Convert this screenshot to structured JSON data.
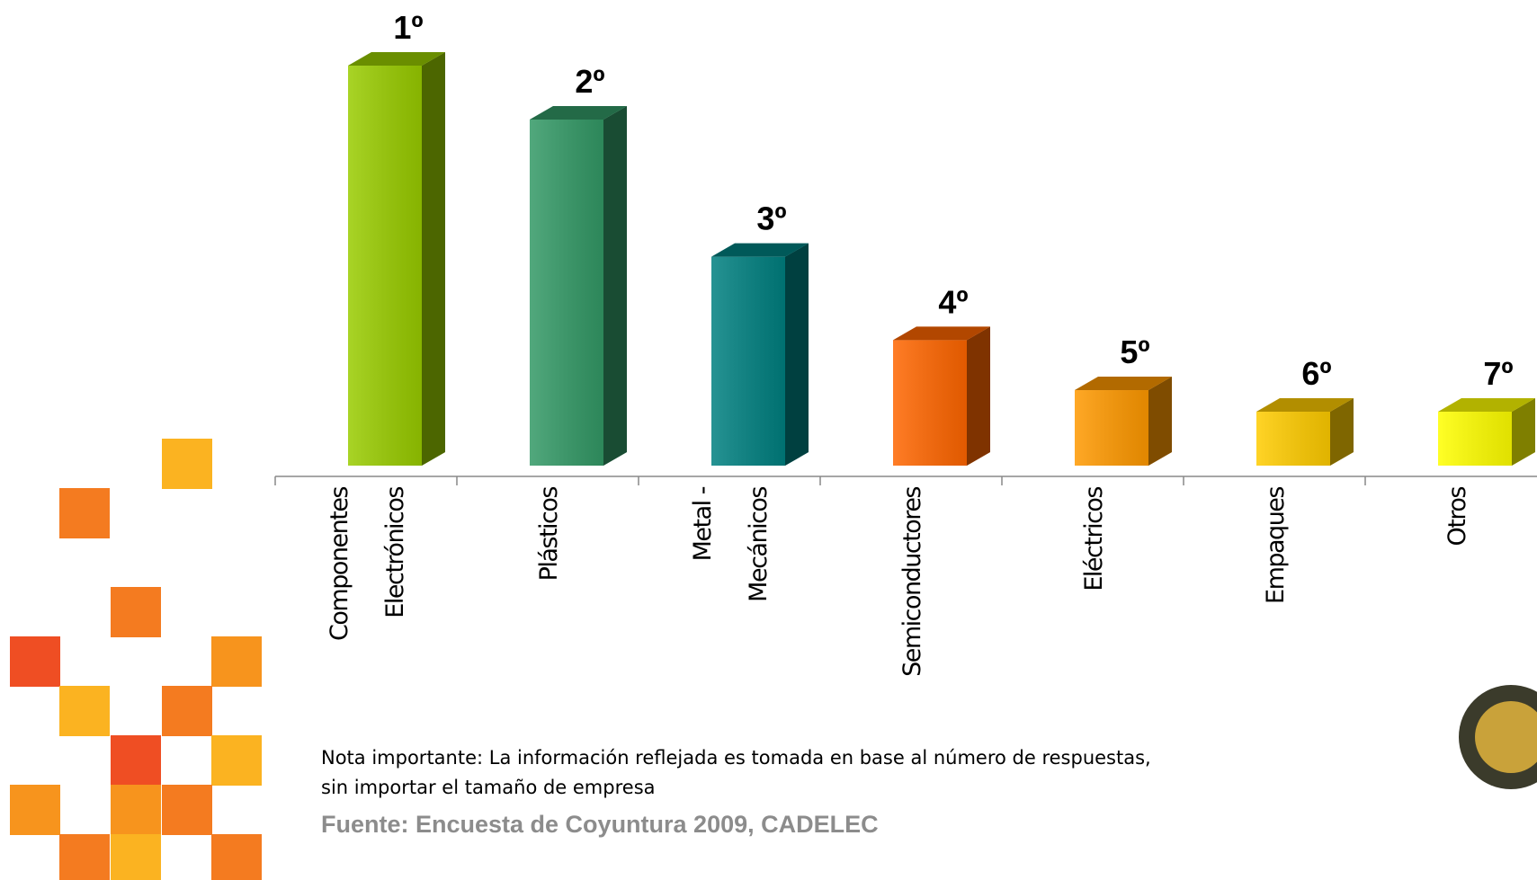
{
  "chart_data": {
    "type": "bar3d",
    "categories": [
      [
        "Componentes",
        "Electrónicos"
      ],
      [
        "Plásticos"
      ],
      [
        "Metal -",
        "Mecánicos"
      ],
      [
        "Semiconductores"
      ],
      [
        "Eléctricos"
      ],
      [
        "Empaques"
      ],
      [
        "Otros"
      ]
    ],
    "values": [
      408,
      353,
      213,
      128,
      77,
      55,
      55
    ],
    "rank_labels": [
      "1º",
      "2º",
      "3º",
      "4º",
      "5º",
      "6º",
      "7º"
    ],
    "colors": [
      "#99cc00",
      "#339966",
      "#008080",
      "#ff6600",
      "#ff9900",
      "#ffcc00",
      "#ffff00"
    ],
    "ylim": [
      0,
      408
    ]
  },
  "note": [
    "Nota importante: La información reflejada es tomada en base al número de respuestas,",
    "sin importar el tamaño de empresa"
  ],
  "source": "Fuente: Encuesta de Coyuntura 2009, CADELEC"
}
